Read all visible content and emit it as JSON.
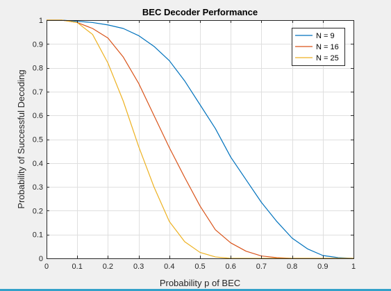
{
  "chart_data": {
    "type": "line",
    "title": "BEC Decoder Performance",
    "xlabel": "Probability p of BEC",
    "ylabel": "Probability of Successful Decoding",
    "xlim": [
      0,
      1
    ],
    "ylim": [
      0,
      1
    ],
    "xticks": [
      0,
      0.1,
      0.2,
      0.3,
      0.4,
      0.5,
      0.6,
      0.7,
      0.8,
      0.9,
      1
    ],
    "xtick_labels": [
      "0",
      "0.1",
      "0.2",
      "0.3",
      "0.4",
      "0.5",
      "0.6",
      "0.7",
      "0.8",
      "0.9",
      "1"
    ],
    "yticks": [
      0,
      0.1,
      0.2,
      0.3,
      0.4,
      0.5,
      0.6,
      0.7,
      0.8,
      0.9,
      1
    ],
    "ytick_labels": [
      "0",
      "0.1",
      "0.2",
      "0.3",
      "0.4",
      "0.5",
      "0.6",
      "0.7",
      "0.8",
      "0.9",
      "1"
    ],
    "grid": true,
    "legend_position": "top-right",
    "x": [
      0,
      0.05,
      0.1,
      0.15,
      0.2,
      0.25,
      0.3,
      0.35,
      0.4,
      0.45,
      0.5,
      0.55,
      0.6,
      0.65,
      0.7,
      0.75,
      0.8,
      0.85,
      0.9,
      0.95,
      1
    ],
    "series": [
      {
        "name": "N = 9",
        "color": "#0072bd",
        "values": [
          1,
          1,
          0.995,
          0.99,
          0.98,
          0.965,
          0.935,
          0.89,
          0.83,
          0.745,
          0.645,
          0.545,
          0.425,
          0.33,
          0.235,
          0.155,
          0.085,
          0.04,
          0.012,
          0.003,
          0
        ]
      },
      {
        "name": "N = 16",
        "color": "#d95319",
        "values": [
          1,
          1,
          0.99,
          0.965,
          0.925,
          0.845,
          0.735,
          0.6,
          0.465,
          0.34,
          0.22,
          0.12,
          0.065,
          0.03,
          0.01,
          0.003,
          0,
          0,
          0,
          0,
          0
        ]
      },
      {
        "name": "N = 25",
        "color": "#edb120",
        "values": [
          1,
          1,
          0.99,
          0.94,
          0.82,
          0.66,
          0.47,
          0.3,
          0.155,
          0.07,
          0.025,
          0.006,
          0,
          0,
          0,
          0,
          0,
          0,
          0,
          0,
          0
        ]
      }
    ]
  }
}
